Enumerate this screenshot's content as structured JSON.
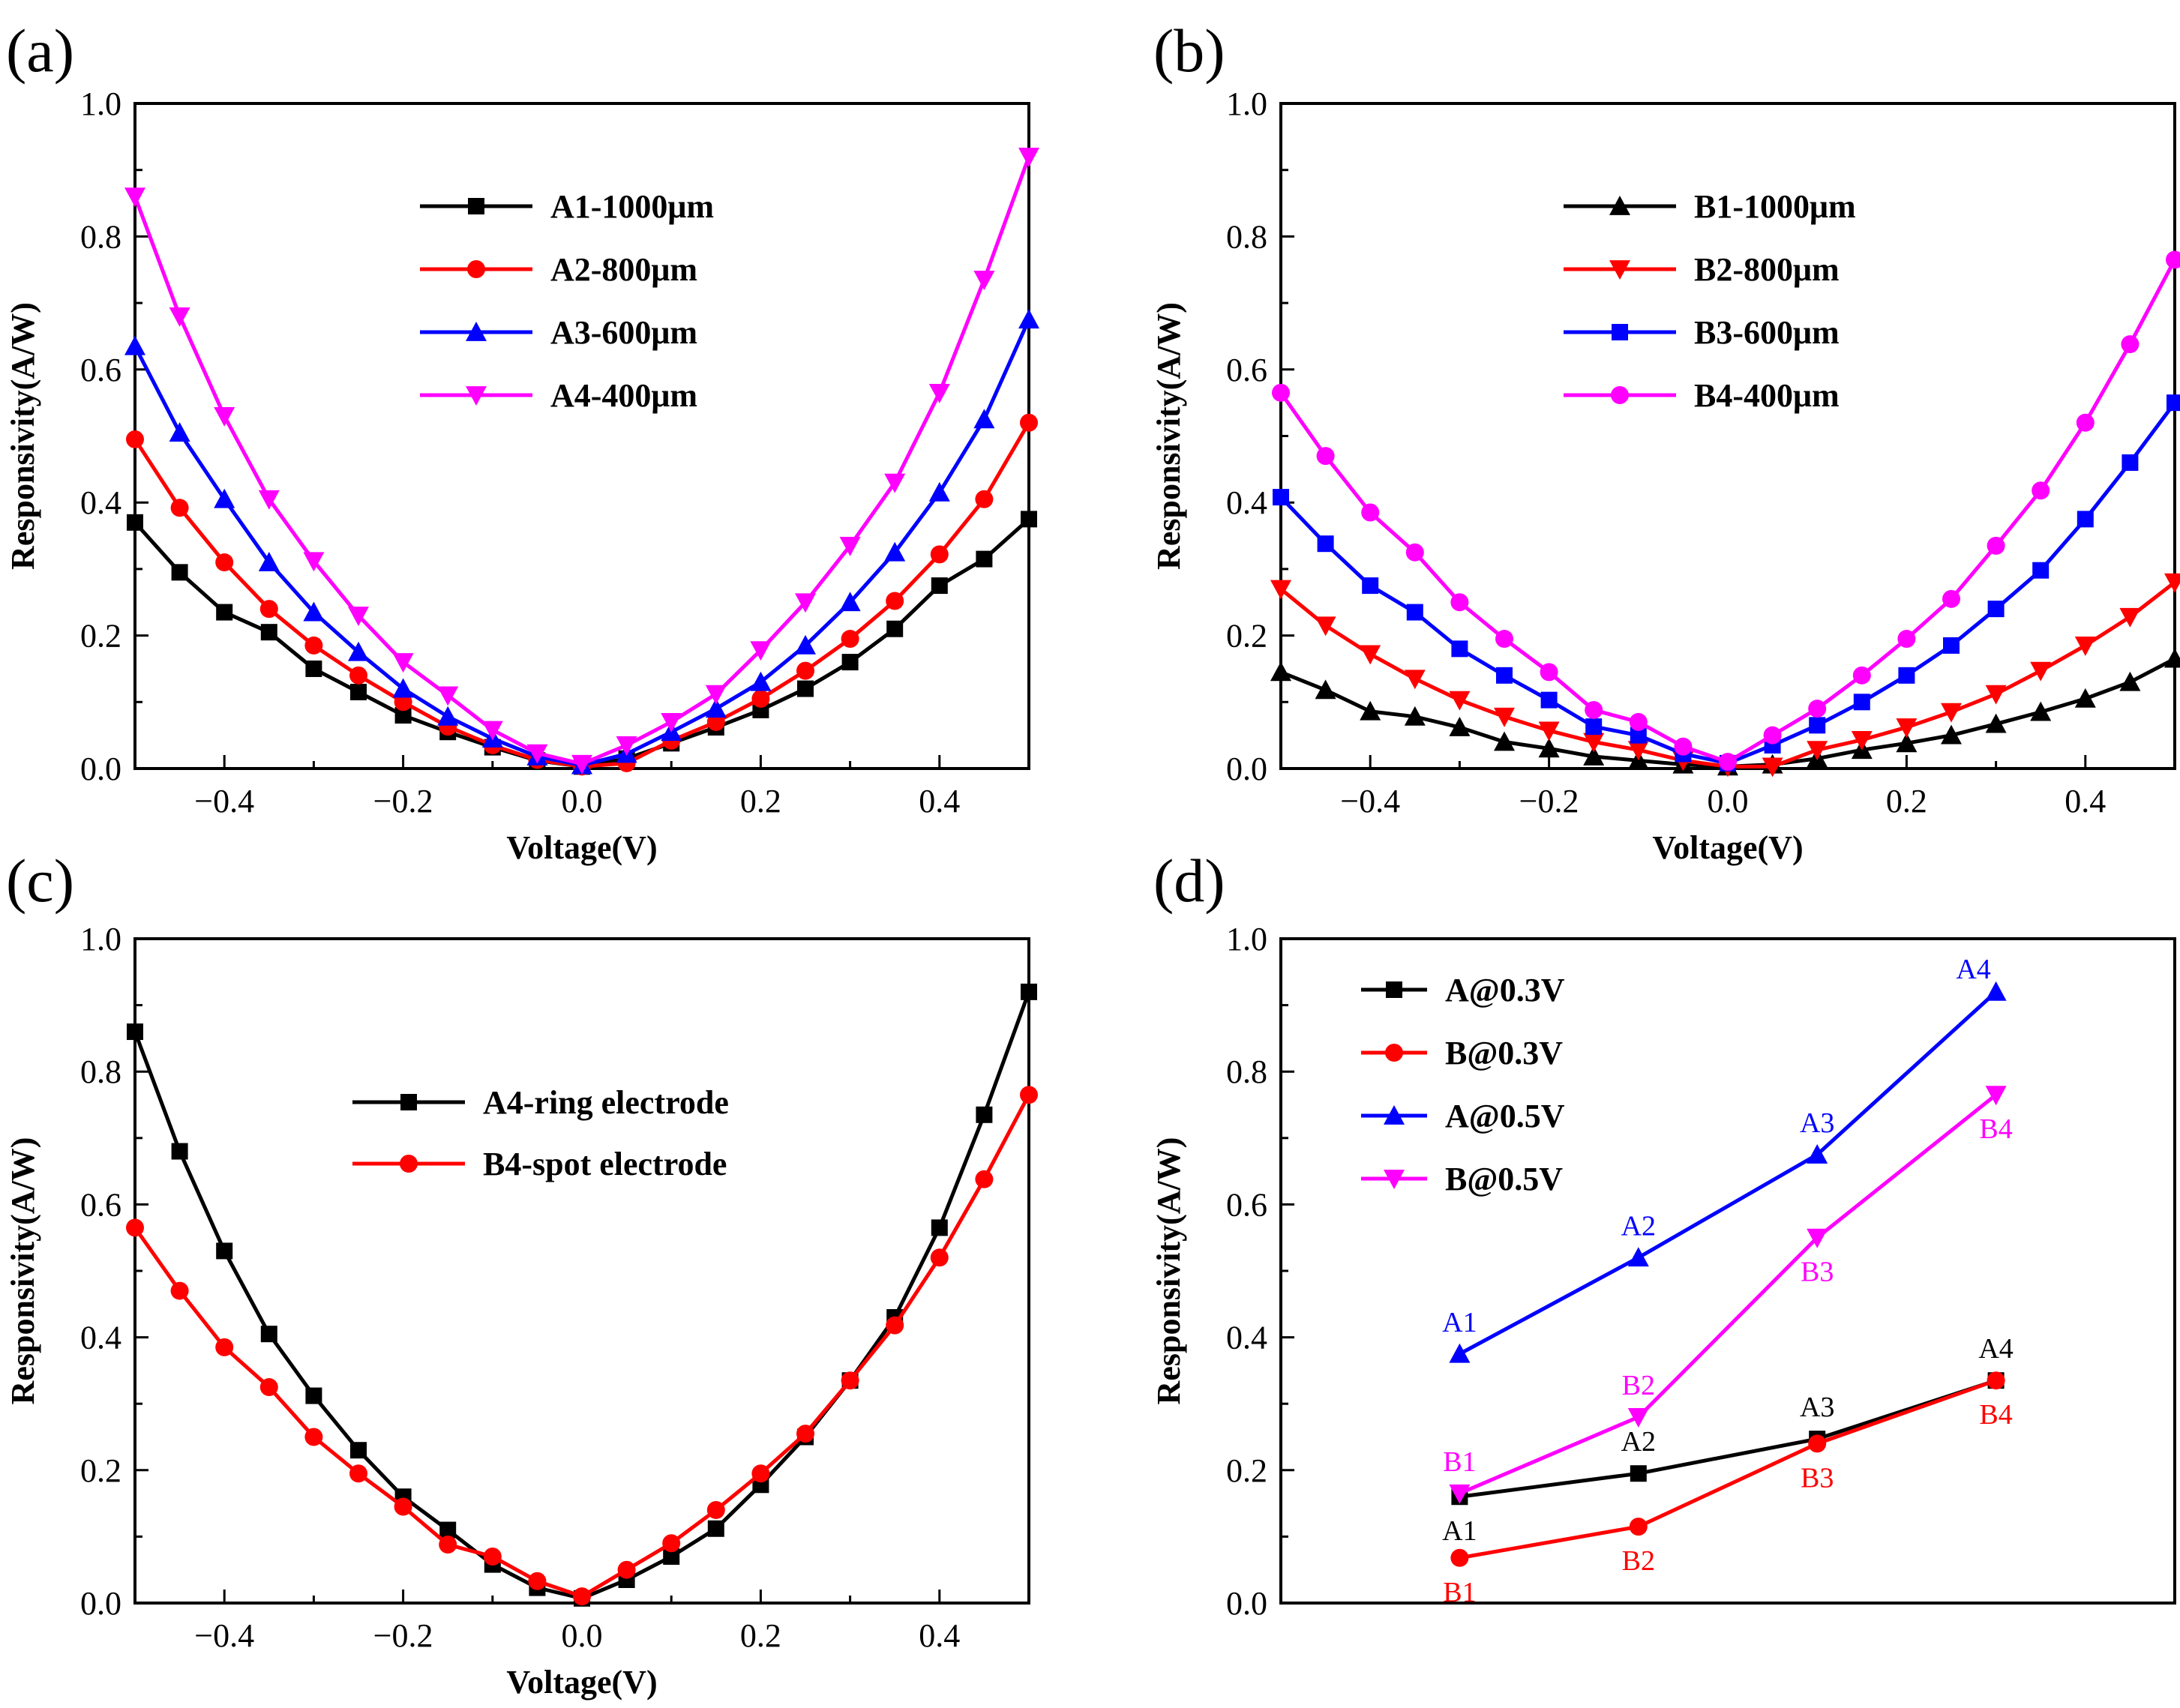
{
  "colors": {
    "black": "#000000",
    "red": "#ff0000",
    "blue": "#0000ff",
    "magenta": "#ff00ff"
  },
  "chart_data": [
    {
      "panel": "(a)",
      "type": "line",
      "xlabel": "Voltage(V)",
      "ylabel": "Responsivity(A/W)",
      "xlim": [
        -0.5,
        0.5
      ],
      "ylim": [
        0,
        1.0
      ],
      "xticks": [
        -0.4,
        -0.2,
        0.0,
        0.2,
        0.4
      ],
      "xtick_labels": [
        "−0.4",
        "−0.2",
        "0.0",
        "0.2",
        "0.4"
      ],
      "yticks": [
        0,
        0.2,
        0.4,
        0.6,
        0.8,
        1.0
      ],
      "ytick_labels": [
        "0.0",
        "0.2",
        "0.4",
        "0.6",
        "0.8",
        "1.0"
      ],
      "legend_position": "top-center",
      "x": [
        -0.5,
        -0.45,
        -0.4,
        -0.35,
        -0.3,
        -0.25,
        -0.2,
        -0.15,
        -0.1,
        -0.05,
        0.0,
        0.05,
        0.1,
        0.15,
        0.2,
        0.25,
        0.3,
        0.35,
        0.4,
        0.45,
        0.5
      ],
      "series": [
        {
          "name": "A1",
          "suffix": "-1000μm",
          "color": "#000000",
          "marker": "square",
          "values": [
            0.37,
            0.295,
            0.235,
            0.205,
            0.15,
            0.115,
            0.08,
            0.055,
            0.032,
            0.012,
            0.003,
            0.015,
            0.038,
            0.062,
            0.088,
            0.12,
            0.16,
            0.21,
            0.275,
            0.315,
            0.375
          ]
        },
        {
          "name": "A2",
          "suffix": "-800μm",
          "color": "#ff0000",
          "marker": "circle",
          "values": [
            0.495,
            0.392,
            0.31,
            0.24,
            0.185,
            0.14,
            0.1,
            0.063,
            0.035,
            0.013,
            0.003,
            0.008,
            0.042,
            0.07,
            0.105,
            0.147,
            0.195,
            0.252,
            0.322,
            0.405,
            0.52
          ]
        },
        {
          "name": "A3",
          "suffix": "-600μm",
          "color": "#0000ff",
          "marker": "triangle-up",
          "values": [
            0.635,
            0.505,
            0.405,
            0.31,
            0.235,
            0.175,
            0.12,
            0.078,
            0.045,
            0.018,
            0.005,
            0.022,
            0.055,
            0.09,
            0.13,
            0.185,
            0.25,
            0.325,
            0.415,
            0.525,
            0.675
          ]
        },
        {
          "name": "A4",
          "suffix": "-400μm",
          "color": "#ff00ff",
          "marker": "triangle-down",
          "values": [
            0.86,
            0.68,
            0.53,
            0.405,
            0.312,
            0.23,
            0.16,
            0.11,
            0.058,
            0.023,
            0.007,
            0.035,
            0.07,
            0.112,
            0.178,
            0.25,
            0.335,
            0.43,
            0.565,
            0.735,
            0.92
          ]
        }
      ]
    },
    {
      "panel": "(b)",
      "type": "line",
      "xlabel": "Voltage(V)",
      "ylabel": "Responsivity(A/W)",
      "xlim": [
        -0.5,
        0.5
      ],
      "ylim": [
        0,
        1.0
      ],
      "xticks": [
        -0.4,
        -0.2,
        0.0,
        0.2,
        0.4
      ],
      "xtick_labels": [
        "−0.4",
        "−0.2",
        "0.0",
        "0.2",
        "0.4"
      ],
      "yticks": [
        0,
        0.2,
        0.4,
        0.6,
        0.8,
        1.0
      ],
      "ytick_labels": [
        "0.0",
        "0.2",
        "0.4",
        "0.6",
        "0.8",
        "1.0"
      ],
      "legend_position": "top-center",
      "x": [
        -0.5,
        -0.45,
        -0.4,
        -0.35,
        -0.3,
        -0.25,
        -0.2,
        -0.15,
        -0.1,
        -0.05,
        0.0,
        0.05,
        0.1,
        0.15,
        0.2,
        0.25,
        0.3,
        0.35,
        0.4,
        0.45,
        0.5
      ],
      "series": [
        {
          "name": "B1",
          "suffix": "-1000μm",
          "color": "#000000",
          "marker": "triangle-up",
          "values": [
            0.145,
            0.118,
            0.086,
            0.078,
            0.062,
            0.04,
            0.03,
            0.018,
            0.012,
            0.006,
            0.003,
            0.006,
            0.015,
            0.028,
            0.038,
            0.05,
            0.067,
            0.085,
            0.105,
            0.13,
            0.165
          ]
        },
        {
          "name": "B2",
          "suffix": "-800μm",
          "color": "#ff0000",
          "marker": "triangle-down",
          "values": [
            0.27,
            0.215,
            0.172,
            0.135,
            0.103,
            0.078,
            0.057,
            0.04,
            0.028,
            0.012,
            0.003,
            0.003,
            0.028,
            0.043,
            0.062,
            0.085,
            0.112,
            0.147,
            0.185,
            0.228,
            0.28
          ]
        },
        {
          "name": "B3",
          "suffix": "-600μm",
          "color": "#0000ff",
          "marker": "square",
          "values": [
            0.408,
            0.338,
            0.275,
            0.235,
            0.18,
            0.14,
            0.103,
            0.063,
            0.05,
            0.022,
            0.008,
            0.035,
            0.065,
            0.1,
            0.14,
            0.185,
            0.24,
            0.298,
            0.375,
            0.46,
            0.55
          ]
        },
        {
          "name": "B4",
          "suffix": "-400μm",
          "color": "#ff00ff",
          "marker": "circle",
          "values": [
            0.565,
            0.47,
            0.385,
            0.325,
            0.25,
            0.195,
            0.145,
            0.088,
            0.07,
            0.033,
            0.01,
            0.05,
            0.09,
            0.14,
            0.195,
            0.255,
            0.335,
            0.418,
            0.52,
            0.638,
            0.765
          ]
        }
      ]
    },
    {
      "panel": "(c)",
      "type": "line",
      "xlabel": "Voltage(V)",
      "ylabel": "Responsivity(A/W)",
      "xlim": [
        -0.5,
        0.5
      ],
      "ylim": [
        0,
        1.0
      ],
      "xticks": [
        -0.4,
        -0.2,
        0.0,
        0.2,
        0.4
      ],
      "xtick_labels": [
        "−0.4",
        "−0.2",
        "0.0",
        "0.2",
        "0.4"
      ],
      "yticks": [
        0,
        0.2,
        0.4,
        0.6,
        0.8,
        1.0
      ],
      "ytick_labels": [
        "0.0",
        "0.2",
        "0.4",
        "0.6",
        "0.8",
        "1.0"
      ],
      "legend_position": "center",
      "x": [
        -0.5,
        -0.45,
        -0.4,
        -0.35,
        -0.3,
        -0.25,
        -0.2,
        -0.15,
        -0.1,
        -0.05,
        0.0,
        0.05,
        0.1,
        0.15,
        0.2,
        0.25,
        0.3,
        0.35,
        0.4,
        0.45,
        0.5
      ],
      "series": [
        {
          "name": "A4-ring electrode",
          "color": "#000000",
          "marker": "square",
          "values": [
            0.86,
            0.68,
            0.53,
            0.405,
            0.312,
            0.23,
            0.16,
            0.11,
            0.058,
            0.023,
            0.007,
            0.035,
            0.07,
            0.112,
            0.178,
            0.25,
            0.335,
            0.43,
            0.565,
            0.735,
            0.92
          ]
        },
        {
          "name": "B4-spot electrode",
          "color": "#ff0000",
          "marker": "circle",
          "values": [
            0.565,
            0.47,
            0.385,
            0.325,
            0.25,
            0.195,
            0.145,
            0.088,
            0.07,
            0.033,
            0.01,
            0.05,
            0.09,
            0.14,
            0.195,
            0.255,
            0.335,
            0.418,
            0.52,
            0.638,
            0.765
          ]
        }
      ]
    },
    {
      "panel": "(d)",
      "type": "line",
      "xlabel": "",
      "ylabel": "Responsivity(A/W)",
      "xlim": [
        0,
        5
      ],
      "ylim": [
        0,
        1.0
      ],
      "yticks": [
        0,
        0.2,
        0.4,
        0.6,
        0.8,
        1.0
      ],
      "ytick_labels": [
        "0.0",
        "0.2",
        "0.4",
        "0.6",
        "0.8",
        "1.0"
      ],
      "legend_position": "top-left",
      "x": [
        1,
        2,
        3,
        4
      ],
      "series": [
        {
          "name": "A@0.3V",
          "color": "#000000",
          "marker": "square",
          "values": [
            0.16,
            0.195,
            0.247,
            0.335
          ],
          "labels": [
            "A1",
            "A2",
            "A3",
            "A4"
          ],
          "label_pos": [
            "below",
            "above",
            "above",
            "above"
          ]
        },
        {
          "name": "B@0.3V",
          "color": "#ff0000",
          "marker": "circle",
          "values": [
            0.068,
            0.115,
            0.24,
            0.335
          ],
          "labels": [
            "B1",
            "B2",
            "B3",
            "B4"
          ],
          "label_pos": [
            "below",
            "below",
            "below",
            "below"
          ]
        },
        {
          "name": "A@0.5V",
          "color": "#0000ff",
          "marker": "triangle-up",
          "values": [
            0.375,
            0.52,
            0.675,
            0.92
          ],
          "labels": [
            "A1",
            "A2",
            "A3",
            "A4"
          ],
          "label_pos": [
            "above",
            "above",
            "above",
            "above-left"
          ]
        },
        {
          "name": "B@0.5V",
          "color": "#ff00ff",
          "marker": "triangle-down",
          "values": [
            0.165,
            0.28,
            0.55,
            0.765
          ],
          "labels": [
            "B1",
            "B2",
            "B3",
            "B4"
          ],
          "label_pos": [
            "above",
            "above",
            "below",
            "below"
          ]
        }
      ]
    }
  ]
}
